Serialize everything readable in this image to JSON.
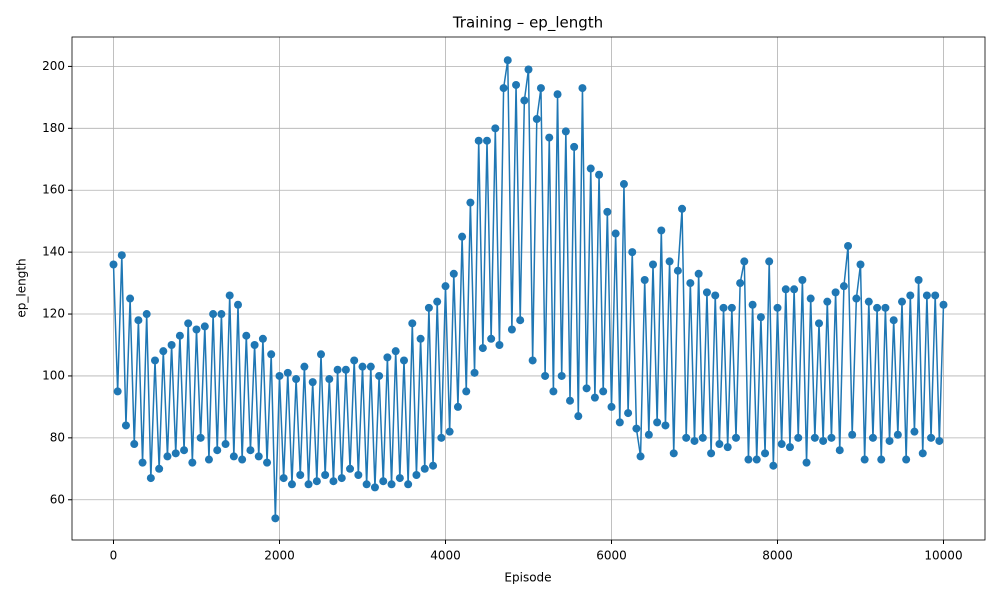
{
  "chart_data": {
    "type": "line",
    "title": "Training – ep_length",
    "xlabel": "Episode",
    "ylabel": "ep_length",
    "x": [
      0,
      50,
      100,
      150,
      200,
      250,
      300,
      350,
      400,
      450,
      500,
      550,
      600,
      650,
      700,
      750,
      800,
      850,
      900,
      950,
      1000,
      1050,
      1100,
      1150,
      1200,
      1250,
      1300,
      1350,
      1400,
      1450,
      1500,
      1550,
      1600,
      1650,
      1700,
      1750,
      1800,
      1850,
      1900,
      1950,
      2000,
      2050,
      2100,
      2150,
      2200,
      2250,
      2300,
      2350,
      2400,
      2450,
      2500,
      2550,
      2600,
      2650,
      2700,
      2750,
      2800,
      2850,
      2900,
      2950,
      3000,
      3050,
      3100,
      3150,
      3200,
      3250,
      3300,
      3350,
      3400,
      3450,
      3500,
      3550,
      3600,
      3650,
      3700,
      3750,
      3800,
      3850,
      3900,
      3950,
      4000,
      4050,
      4100,
      4150,
      4200,
      4250,
      4300,
      4350,
      4400,
      4450,
      4500,
      4550,
      4600,
      4650,
      4700,
      4750,
      4800,
      4850,
      4900,
      4950,
      5000,
      5050,
      5100,
      5150,
      5200,
      5250,
      5300,
      5350,
      5400,
      5450,
      5500,
      5550,
      5600,
      5650,
      5700,
      5750,
      5800,
      5850,
      5900,
      5950,
      6000,
      6050,
      6100,
      6150,
      6200,
      6250,
      6300,
      6350,
      6400,
      6450,
      6500,
      6550,
      6600,
      6650,
      6700,
      6750,
      6800,
      6850,
      6900,
      6950,
      7000,
      7050,
      7100,
      7150,
      7200,
      7250,
      7300,
      7350,
      7400,
      7450,
      7500,
      7550,
      7600,
      7650,
      7700,
      7750,
      7800,
      7850,
      7900,
      7950,
      8000,
      8050,
      8100,
      8150,
      8200,
      8250,
      8300,
      8350,
      8400,
      8450,
      8500,
      8550,
      8600,
      8650,
      8700,
      8750,
      8800,
      8850,
      8900,
      8950,
      9000,
      9050,
      9100,
      9150,
      9200,
      9250,
      9300,
      9350,
      9400,
      9450,
      9500,
      9550,
      9600,
      9650,
      9700,
      9750,
      9800,
      9850,
      9900,
      9950,
      10000
    ],
    "series": [
      {
        "color": "#1f77b4",
        "values": [
          136,
          95,
          139,
          84,
          125,
          78,
          118,
          72,
          120,
          67,
          105,
          70,
          108,
          74,
          110,
          75,
          113,
          76,
          117,
          72,
          115,
          80,
          116,
          73,
          120,
          76,
          120,
          78,
          126,
          74,
          123,
          73,
          113,
          76,
          110,
          74,
          112,
          72,
          107,
          54,
          100,
          67,
          101,
          65,
          99,
          68,
          103,
          65,
          98,
          66,
          107,
          68,
          99,
          66,
          102,
          67,
          102,
          70,
          105,
          68,
          103,
          65,
          103,
          64,
          100,
          66,
          106,
          65,
          108,
          67,
          105,
          65,
          117,
          68,
          112,
          70,
          122,
          71,
          124,
          80,
          129,
          82,
          133,
          90,
          145,
          95,
          156,
          101,
          176,
          109,
          176,
          112,
          180,
          110,
          193,
          202,
          115,
          194,
          118,
          189,
          199,
          105,
          183,
          193,
          100,
          177,
          95,
          191,
          100,
          179,
          92,
          174,
          87,
          193,
          96,
          167,
          93,
          165,
          95,
          153,
          90,
          146,
          85,
          162,
          88,
          140,
          83,
          74,
          131,
          81,
          136,
          85,
          147,
          84,
          137,
          75,
          134,
          154,
          80,
          130,
          79,
          133,
          80,
          127,
          75,
          126,
          78,
          122,
          77,
          122,
          80,
          130,
          137,
          73,
          123,
          73,
          119,
          75,
          137,
          71,
          122,
          78,
          128,
          77,
          128,
          80,
          131,
          72,
          125,
          80,
          117,
          79,
          124,
          80,
          127,
          76,
          129,
          142,
          81,
          125,
          136,
          73,
          124,
          80,
          122,
          73,
          122,
          79,
          118,
          81,
          124,
          73,
          126,
          82,
          131,
          75,
          126,
          80,
          126,
          79,
          123
        ]
      }
    ],
    "xlim": [
      -500,
      10500
    ],
    "ylim": [
      47,
      209.5
    ],
    "xticks": [
      0,
      2000,
      4000,
      6000,
      8000,
      10000
    ],
    "yticks": [
      60,
      80,
      100,
      120,
      140,
      160,
      180,
      200
    ],
    "grid": true
  }
}
